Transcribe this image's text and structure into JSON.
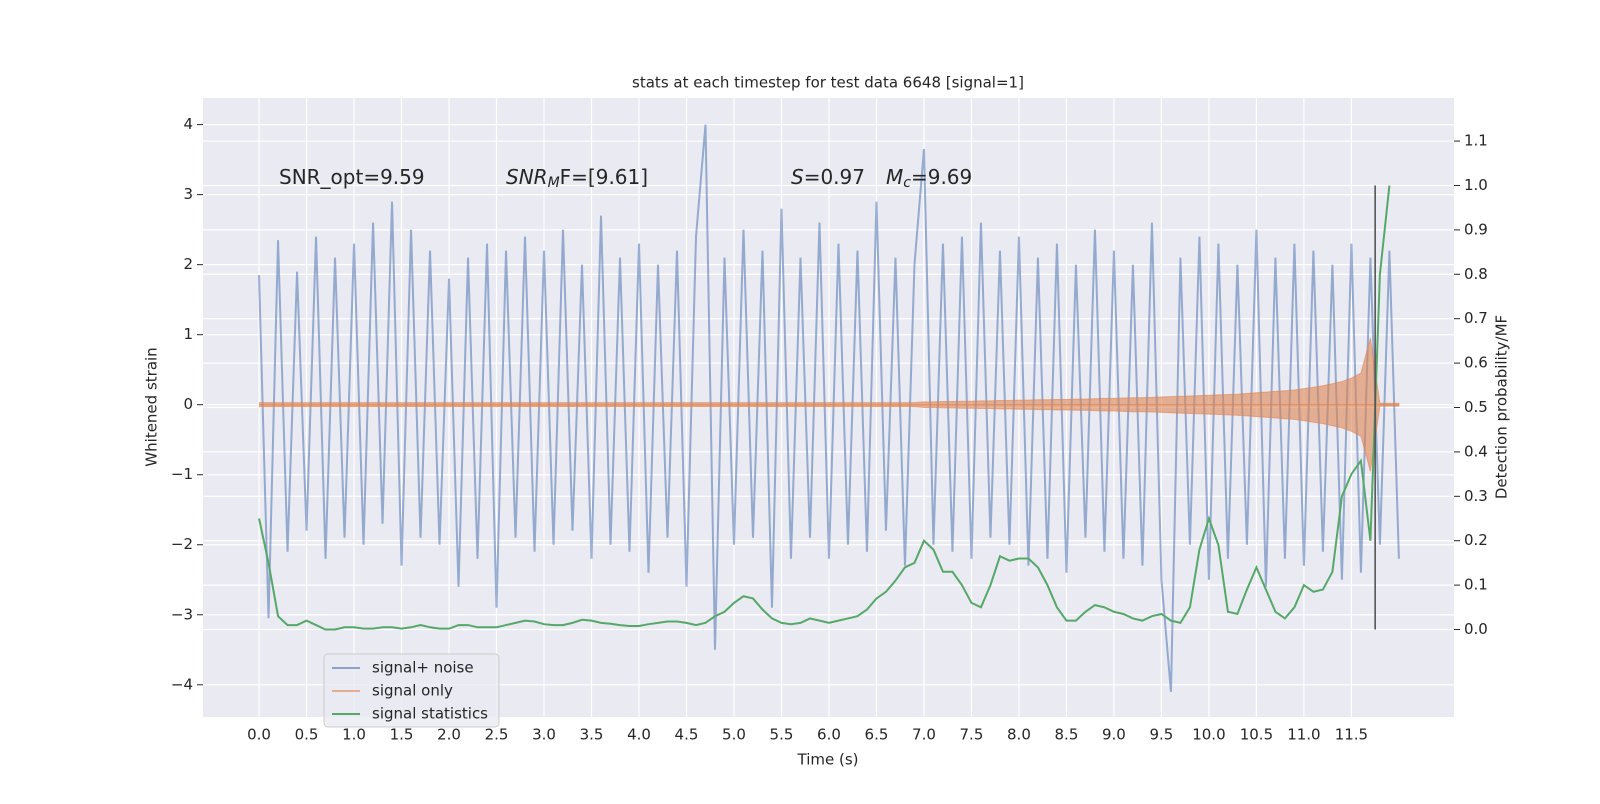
{
  "chart_data": {
    "type": "line",
    "title": "stats at each timestep for test data 6648 [signal=1]",
    "xlabel": "Time (s)",
    "ylabel": "Whitened strain",
    "y2label": "Detection probability/MF",
    "annotations": [
      {
        "parts": [
          {
            "text": "SNR_opt=9.59"
          }
        ]
      },
      {
        "parts": [
          {
            "text": "SNR",
            "italic": true
          },
          {
            "text": "M",
            "italic": true,
            "sub": true
          },
          {
            "text": "F=[9.61]"
          }
        ]
      },
      {
        "parts": [
          {
            "text": "S",
            "italic": true
          },
          {
            "text": "=0.97"
          }
        ]
      },
      {
        "parts": [
          {
            "text": "M",
            "italic": true
          },
          {
            "text": "c",
            "italic": true,
            "sub": true
          },
          {
            "text": "=9.69"
          }
        ]
      }
    ],
    "xlim": [
      -0.59,
      12.58
    ],
    "ylim": [
      -4.46,
      4.38
    ],
    "y2lim": [
      -0.197,
      1.197
    ],
    "xticks": [
      {
        "value": 0,
        "label": "0.0"
      },
      0.5,
      {
        "value": 1,
        "label": "1.0"
      },
      1.5,
      {
        "value": 2,
        "label": "2.0"
      },
      2.5,
      {
        "value": 3,
        "label": "3.0"
      },
      3.5,
      {
        "value": 4,
        "label": "4.0"
      },
      4.5,
      {
        "value": 5,
        "label": "5.0"
      },
      5.5,
      {
        "value": 6,
        "label": "6.0"
      },
      6.5,
      {
        "value": 7,
        "label": "7.0"
      },
      7.5,
      {
        "value": 8,
        "label": "8.0"
      },
      8.5,
      {
        "value": 9,
        "label": "9.0"
      },
      9.5,
      {
        "value": 10,
        "label": "10.0"
      },
      10.5,
      {
        "value": 11,
        "label": "11.0"
      },
      11.5
    ],
    "yticks": [
      {
        "value": -4,
        "label": "−4"
      },
      {
        "value": -3,
        "label": "−3"
      },
      {
        "value": -2,
        "label": "−2"
      },
      {
        "value": -1,
        "label": "−1"
      },
      0,
      1,
      2,
      3,
      4
    ],
    "y2ticks": [
      {
        "value": 0,
        "label": "0.0"
      },
      0.1,
      0.2,
      0.3,
      0.4,
      0.5,
      0.6,
      0.7,
      0.8,
      0.9,
      {
        "value": 1,
        "label": "1.0"
      },
      1.1
    ],
    "grid": true,
    "legend": "lower left",
    "x": [
      0,
      0.1,
      0.2,
      0.3,
      0.4,
      0.5,
      0.6,
      0.7,
      0.8,
      0.9,
      1,
      1.1,
      1.2,
      1.3,
      1.4,
      1.5,
      1.6,
      1.7,
      1.8,
      1.9,
      2,
      2.1,
      2.2,
      2.3,
      2.4,
      2.5,
      2.6,
      2.7,
      2.8,
      2.9,
      3,
      3.1,
      3.2,
      3.3,
      3.4,
      3.5,
      3.6,
      3.7,
      3.8,
      3.9,
      4,
      4.1,
      4.2,
      4.3,
      4.4,
      4.5,
      4.6,
      4.7,
      4.8,
      4.9,
      5,
      5.1,
      5.2,
      5.3,
      5.4,
      5.5,
      5.6,
      5.7,
      5.8,
      5.9,
      6,
      6.1,
      6.2,
      6.3,
      6.4,
      6.5,
      6.6,
      6.7,
      6.8,
      6.9,
      7,
      7.1,
      7.2,
      7.3,
      7.4,
      7.5,
      7.6,
      7.7,
      7.8,
      7.9,
      8,
      8.1,
      8.2,
      8.3,
      8.4,
      8.5,
      8.6,
      8.7,
      8.8,
      8.9,
      9,
      9.1,
      9.2,
      9.3,
      9.4,
      9.5,
      9.6,
      9.7,
      9.8,
      9.9,
      10,
      10.1,
      10.2,
      10.3,
      10.4,
      10.5,
      10.6,
      10.7,
      10.8,
      10.9,
      11,
      11.1,
      11.2,
      11.3,
      11.4,
      11.5,
      11.6,
      11.7,
      11.8,
      11.9,
      12
    ],
    "series": [
      {
        "name": "signal+ noise",
        "color": "#4c72b0",
        "style": "zigzag",
        "values": [
          1.85,
          -3.05,
          2.35,
          -2.1,
          1.9,
          -1.8,
          2.4,
          -2.2,
          2.1,
          -1.9,
          2.3,
          -2.0,
          2.6,
          -1.7,
          2.9,
          -2.3,
          2.5,
          -1.9,
          2.2,
          -2.0,
          1.8,
          -2.6,
          2.1,
          -2.2,
          2.3,
          -2.9,
          2.2,
          -1.9,
          2.4,
          -2.1,
          2.2,
          -2.0,
          2.5,
          -1.8,
          2.0,
          -2.2,
          2.7,
          -2.0,
          2.1,
          -2.1,
          2.3,
          -2.4,
          2.0,
          -1.9,
          2.2,
          -2.6,
          2.4,
          4.0,
          -3.5,
          2.1,
          -2.0,
          2.5,
          -1.9,
          2.2,
          -2.9,
          2.8,
          -2.2,
          2.1,
          -1.9,
          2.6,
          -2.2,
          2.3,
          -2.0,
          2.2,
          -2.1,
          2.9,
          -1.8,
          2.1,
          -2.3,
          2.0,
          3.65,
          -2.0,
          2.3,
          -2.1,
          2.4,
          -2.2,
          2.6,
          -1.9,
          2.2,
          -2.0,
          2.4,
          -2.3,
          2.1,
          -2.2,
          2.3,
          -2.4,
          2.0,
          -1.9,
          2.5,
          -2.1,
          2.2,
          -2.2,
          2.0,
          -2.3,
          2.6,
          -2.5,
          -4.1,
          2.1,
          -2.0,
          2.4,
          -2.5,
          2.3,
          -2.2,
          2.0,
          -2.0,
          2.5,
          -2.6,
          2.1,
          -2.2,
          2.3,
          -2.3,
          2.2,
          -2.1,
          2.0,
          -2.5,
          2.3,
          -2.4,
          2.1,
          -2.0,
          2.2,
          -2.2
        ]
      },
      {
        "name": "signal only",
        "color": "#dd8452",
        "style": "envelope",
        "values": [
          0.03,
          0.03,
          0.03,
          0.03,
          0.03,
          0.03,
          0.03,
          0.03,
          0.03,
          0.03,
          0.03,
          0.03,
          0.03,
          0.03,
          0.03,
          0.03,
          0.03,
          0.03,
          0.03,
          0.03,
          0.03,
          0.03,
          0.03,
          0.03,
          0.03,
          0.03,
          0.03,
          0.03,
          0.03,
          0.03,
          0.03,
          0.03,
          0.03,
          0.03,
          0.03,
          0.03,
          0.03,
          0.03,
          0.03,
          0.03,
          0.03,
          0.03,
          0.03,
          0.03,
          0.03,
          0.03,
          0.03,
          0.03,
          0.03,
          0.03,
          0.03,
          0.03,
          0.03,
          0.03,
          0.03,
          0.03,
          0.03,
          0.03,
          0.03,
          0.03,
          0.03,
          0.03,
          0.03,
          0.03,
          0.03,
          0.03,
          0.03,
          0.03,
          0.03,
          0.03,
          0.04,
          0.04,
          0.045,
          0.045,
          0.05,
          0.05,
          0.055,
          0.055,
          0.06,
          0.06,
          0.065,
          0.065,
          0.07,
          0.07,
          0.075,
          0.075,
          0.08,
          0.08,
          0.085,
          0.09,
          0.09,
          0.095,
          0.1,
          0.1,
          0.105,
          0.11,
          0.115,
          0.12,
          0.125,
          0.13,
          0.135,
          0.14,
          0.145,
          0.15,
          0.16,
          0.17,
          0.18,
          0.19,
          0.2,
          0.21,
          0.23,
          0.25,
          0.27,
          0.3,
          0.33,
          0.38,
          0.45,
          0.95,
          0.02,
          0.02,
          0.02
        ]
      },
      {
        "name": "signal statistics",
        "color": "#55a868",
        "axis": "y2",
        "style": "line",
        "values": [
          0.25,
          0.15,
          0.03,
          0.01,
          0.01,
          0.02,
          0.01,
          0.0,
          0.0,
          0.005,
          0.005,
          0.002,
          0.002,
          0.005,
          0.005,
          0.002,
          0.005,
          0.01,
          0.005,
          0.002,
          0.002,
          0.01,
          0.01,
          0.005,
          0.005,
          0.005,
          0.01,
          0.015,
          0.02,
          0.018,
          0.012,
          0.01,
          0.01,
          0.015,
          0.022,
          0.02,
          0.015,
          0.013,
          0.01,
          0.008,
          0.008,
          0.012,
          0.015,
          0.018,
          0.018,
          0.015,
          0.01,
          0.015,
          0.03,
          0.04,
          0.06,
          0.075,
          0.07,
          0.045,
          0.025,
          0.015,
          0.012,
          0.015,
          0.025,
          0.02,
          0.015,
          0.02,
          0.025,
          0.03,
          0.045,
          0.07,
          0.085,
          0.11,
          0.14,
          0.15,
          0.2,
          0.18,
          0.13,
          0.13,
          0.1,
          0.06,
          0.05,
          0.1,
          0.165,
          0.155,
          0.16,
          0.16,
          0.14,
          0.1,
          0.05,
          0.02,
          0.02,
          0.04,
          0.055,
          0.05,
          0.04,
          0.035,
          0.025,
          0.02,
          0.03,
          0.035,
          0.02,
          0.015,
          0.05,
          0.18,
          0.25,
          0.19,
          0.04,
          0.035,
          0.09,
          0.14,
          0.09,
          0.04,
          0.025,
          0.05,
          0.1,
          0.085,
          0.09,
          0.13,
          0.3,
          0.35,
          0.38,
          0.2,
          0.8,
          1.0,
          null
        ]
      }
    ],
    "vline_x": 11.75,
    "vline_y2": [
      0,
      1
    ],
    "vline_color": "#555555"
  }
}
